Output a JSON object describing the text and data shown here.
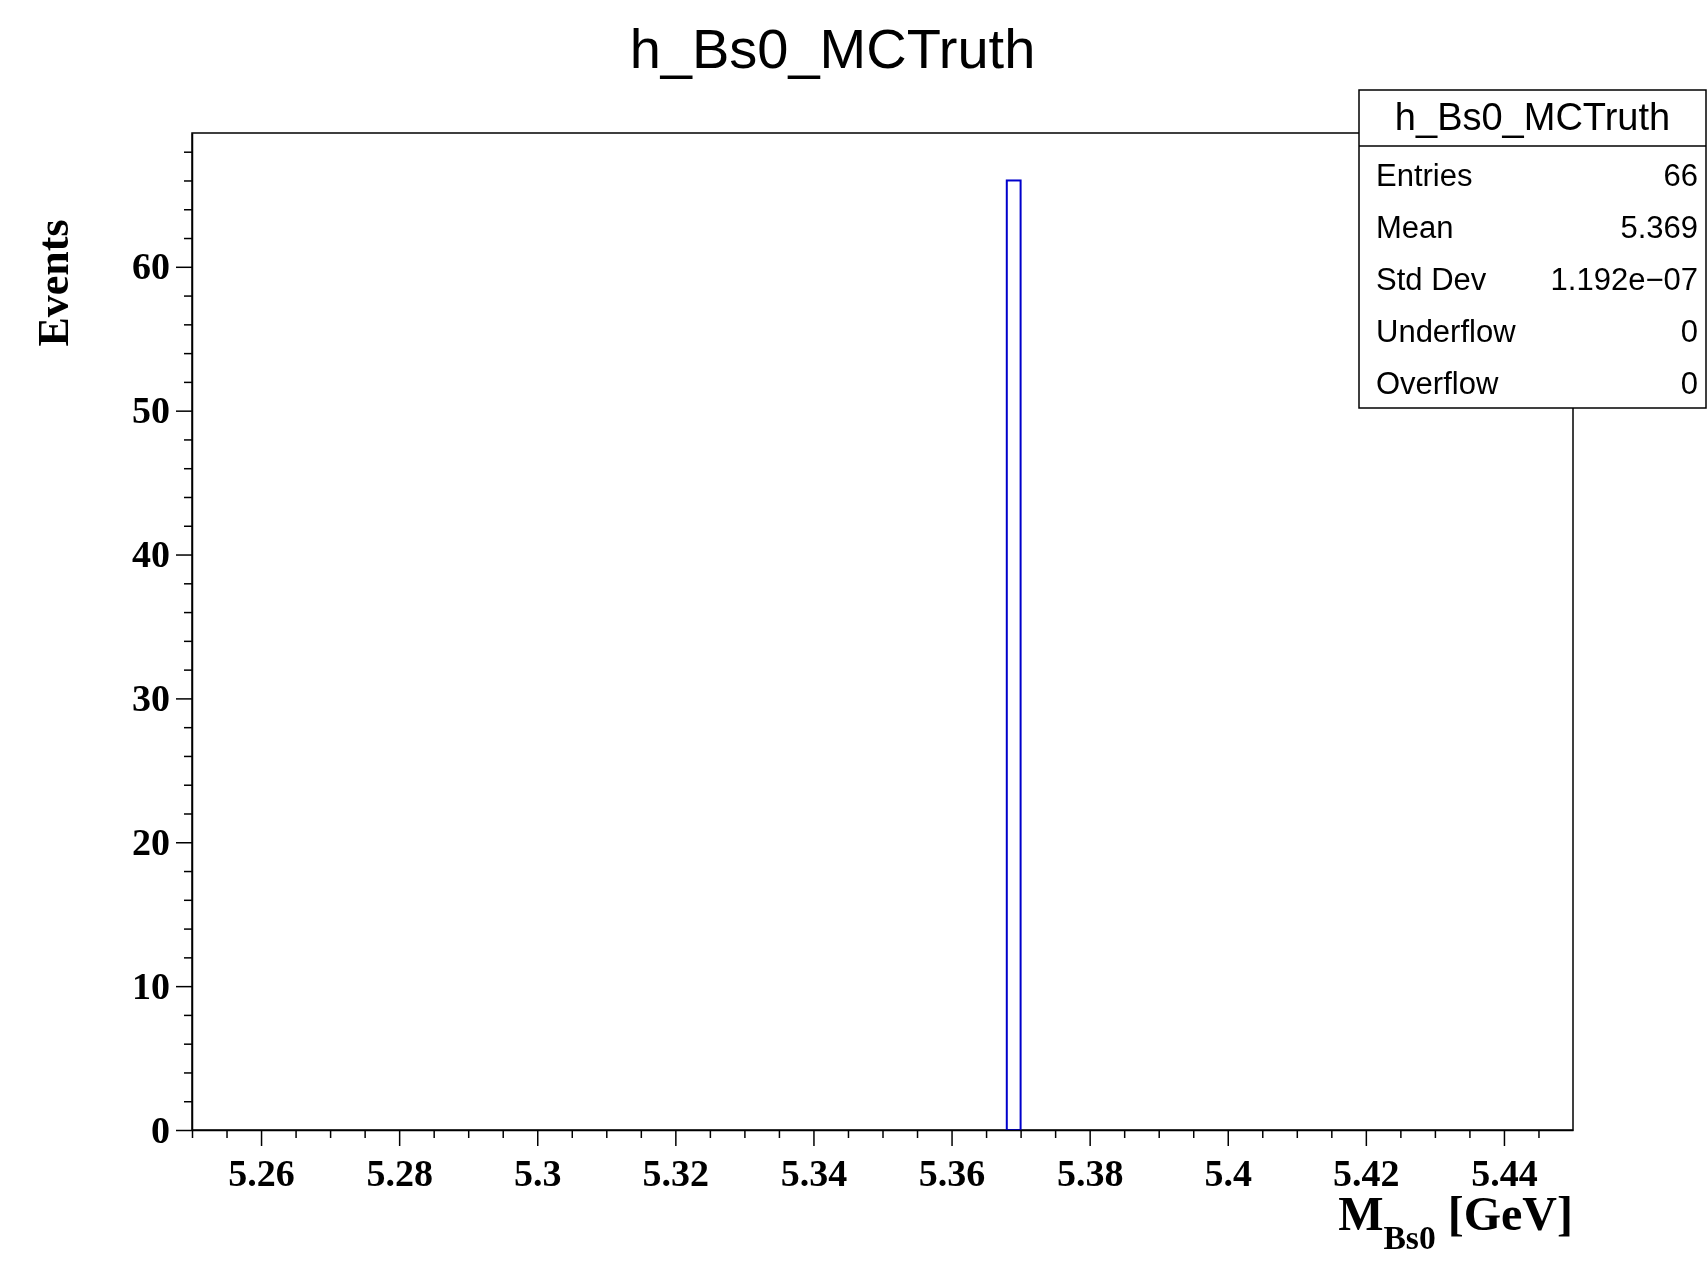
{
  "chart_data": {
    "type": "histogram",
    "title": "h_Bs0_MCTruth",
    "xlabel": "M$_{Bs0}$ [GeV]",
    "ylabel": "Events",
    "bins": [
      5.368,
      5.37
    ],
    "values": [
      66
    ],
    "color": "#0000cc",
    "xlim": [
      5.25,
      5.45
    ],
    "ylim": [
      0,
      69.3
    ],
    "xticks": [
      {
        "value": 5.25,
        "label": null
      },
      {
        "value": 5.255,
        "label": null
      },
      {
        "value": 5.26,
        "label": "5.26"
      },
      {
        "value": 5.265,
        "label": null
      },
      {
        "value": 5.27,
        "label": null
      },
      {
        "value": 5.275,
        "label": null
      },
      {
        "value": 5.28,
        "label": "5.28"
      },
      {
        "value": 5.285,
        "label": null
      },
      {
        "value": 5.29,
        "label": null
      },
      {
        "value": 5.295,
        "label": null
      },
      {
        "value": 5.3,
        "label": "5.3"
      },
      {
        "value": 5.305,
        "label": null
      },
      {
        "value": 5.31,
        "label": null
      },
      {
        "value": 5.315,
        "label": null
      },
      {
        "value": 5.32,
        "label": "5.32"
      },
      {
        "value": 5.325,
        "label": null
      },
      {
        "value": 5.33,
        "label": null
      },
      {
        "value": 5.335,
        "label": null
      },
      {
        "value": 5.34,
        "label": "5.34"
      },
      {
        "value": 5.345,
        "label": null
      },
      {
        "value": 5.35,
        "label": null
      },
      {
        "value": 5.355,
        "label": null
      },
      {
        "value": 5.36,
        "label": "5.36"
      },
      {
        "value": 5.365,
        "label": null
      },
      {
        "value": 5.37,
        "label": null
      },
      {
        "value": 5.375,
        "label": null
      },
      {
        "value": 5.38,
        "label": "5.38"
      },
      {
        "value": 5.385,
        "label": null
      },
      {
        "value": 5.39,
        "label": null
      },
      {
        "value": 5.395,
        "label": null
      },
      {
        "value": 5.4,
        "label": "5.4"
      },
      {
        "value": 5.405,
        "label": null
      },
      {
        "value": 5.41,
        "label": null
      },
      {
        "value": 5.415,
        "label": null
      },
      {
        "value": 5.42,
        "label": "5.42"
      },
      {
        "value": 5.425,
        "label": null
      },
      {
        "value": 5.43,
        "label": null
      },
      {
        "value": 5.435,
        "label": null
      },
      {
        "value": 5.44,
        "label": "5.44"
      },
      {
        "value": 5.445,
        "label": null
      }
    ],
    "yticks": [
      0,
      {
        "value": 2,
        "label": null
      },
      {
        "value": 4,
        "label": null
      },
      {
        "value": 6,
        "label": null
      },
      {
        "value": 8,
        "label": null
      },
      10,
      {
        "value": 12,
        "label": null
      },
      {
        "value": 14,
        "label": null
      },
      {
        "value": 16,
        "label": null
      },
      {
        "value": 18,
        "label": null
      },
      20,
      {
        "value": 22,
        "label": null
      },
      {
        "value": 24,
        "label": null
      },
      {
        "value": 26,
        "label": null
      },
      {
        "value": 28,
        "label": null
      },
      30,
      {
        "value": 32,
        "label": null
      },
      {
        "value": 34,
        "label": null
      },
      {
        "value": 36,
        "label": null
      },
      {
        "value": 38,
        "label": null
      },
      40,
      {
        "value": 42,
        "label": null
      },
      {
        "value": 44,
        "label": null
      },
      {
        "value": 46,
        "label": null
      },
      {
        "value": 48,
        "label": null
      },
      50,
      {
        "value": 52,
        "label": null
      },
      {
        "value": 54,
        "label": null
      },
      {
        "value": 56,
        "label": null
      },
      {
        "value": 58,
        "label": null
      },
      60,
      {
        "value": 62,
        "label": null
      },
      {
        "value": 64,
        "label": null
      },
      {
        "value": 66,
        "label": null
      },
      {
        "value": 68,
        "label": null
      }
    ],
    "annotations": [
      "h_Bs0_MCTruth",
      "Entries 66",
      "Mean 5.369",
      "Std Dev 1.192e−07",
      "Underflow 0",
      "Overflow 0"
    ]
  }
}
